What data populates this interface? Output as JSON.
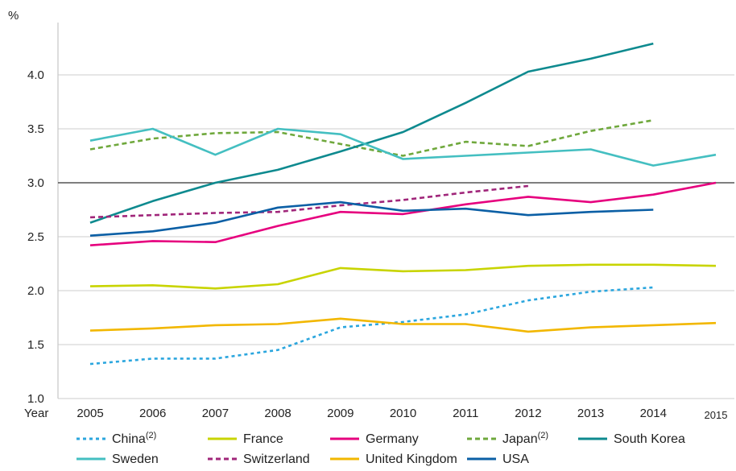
{
  "chart_data": {
    "type": "line",
    "ylabel": "%",
    "xlabel": "Year",
    "ylim": [
      1.0,
      4.5
    ],
    "yticks": [
      "1.0",
      "1.5",
      "2.0",
      "2.5",
      "3.0",
      "3.5",
      "4.0"
    ],
    "x": [
      "2005",
      "2006",
      "2007",
      "2008",
      "2009",
      "2010",
      "2011",
      "2012",
      "2013",
      "2014",
      "2015"
    ],
    "reference_line": 3.0,
    "series": [
      {
        "name": "China",
        "sup": "(2)",
        "color": "#2ba6de",
        "dash": "dotted",
        "values": [
          1.32,
          1.37,
          1.37,
          1.45,
          1.66,
          1.71,
          1.78,
          1.91,
          1.99,
          2.03,
          null
        ]
      },
      {
        "name": "France",
        "sup": "",
        "color": "#c8d400",
        "dash": "solid",
        "values": [
          2.04,
          2.05,
          2.02,
          2.06,
          2.21,
          2.18,
          2.19,
          2.23,
          2.24,
          2.24,
          2.23
        ]
      },
      {
        "name": "Germany",
        "sup": "",
        "color": "#e6007e",
        "dash": "solid",
        "values": [
          2.42,
          2.46,
          2.45,
          2.6,
          2.73,
          2.71,
          2.8,
          2.87,
          2.82,
          2.89,
          3.0
        ]
      },
      {
        "name": "Japan",
        "sup": "(2)",
        "color": "#6fa83c",
        "dash": "dashed",
        "values": [
          3.31,
          3.41,
          3.46,
          3.47,
          3.36,
          3.25,
          3.38,
          3.34,
          3.48,
          3.58,
          null
        ]
      },
      {
        "name": "South Korea",
        "sup": "",
        "color": "#0e8a8f",
        "dash": "solid",
        "values": [
          2.63,
          2.83,
          3.0,
          3.12,
          3.29,
          3.47,
          3.74,
          4.03,
          4.15,
          4.29,
          null
        ]
      },
      {
        "name": "Sweden",
        "sup": "",
        "color": "#44bfc1",
        "dash": "solid",
        "values": [
          3.39,
          3.5,
          3.26,
          3.5,
          3.45,
          3.22,
          3.25,
          3.28,
          3.31,
          3.16,
          3.26
        ]
      },
      {
        "name": "Switzerland",
        "sup": "",
        "color": "#a0267a",
        "dash": "dashed",
        "values": [
          2.68,
          2.7,
          2.72,
          2.73,
          2.79,
          2.84,
          2.91,
          2.97,
          null,
          null,
          null
        ]
      },
      {
        "name": "United Kingdom",
        "sup": "",
        "color": "#f2b700",
        "dash": "solid",
        "values": [
          1.63,
          1.65,
          1.68,
          1.69,
          1.74,
          1.69,
          1.69,
          1.62,
          1.66,
          1.68,
          1.7
        ]
      },
      {
        "name": "USA",
        "sup": "",
        "color": "#0b5fa5",
        "dash": "solid",
        "values": [
          2.51,
          2.55,
          2.63,
          2.77,
          2.82,
          2.74,
          2.76,
          2.7,
          2.73,
          2.75,
          null
        ]
      }
    ],
    "legend": {
      "position": "bottom",
      "rows": [
        [
          0,
          1,
          2,
          3,
          4
        ],
        [
          5,
          6,
          7,
          8
        ]
      ]
    },
    "grid": true
  }
}
